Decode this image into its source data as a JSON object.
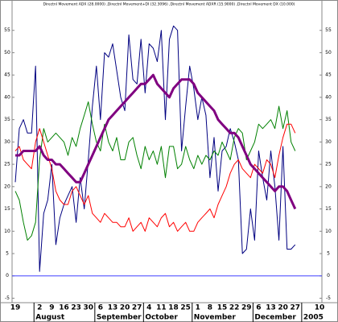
{
  "chart_data": {
    "type": "line",
    "title": "Directnl Movement ADX (28.0000) ,Directnl Movement+DI (32.3096) ,Directnl Movement ADXR (15.9000) ,Directnl Movement DX (10.000)",
    "categories": [
      "19",
      null,
      null,
      null,
      null,
      null,
      "2",
      null,
      null,
      "9",
      null,
      null,
      "16",
      null,
      null,
      "23",
      null,
      null,
      "30",
      null,
      null,
      "6",
      null,
      null,
      "13",
      null,
      null,
      "20",
      null,
      null,
      "27",
      null,
      null,
      "4",
      null,
      null,
      "11",
      null,
      null,
      "18",
      null,
      null,
      "25",
      null,
      null,
      "1",
      null,
      null,
      "8",
      null,
      null,
      "15",
      null,
      null,
      "22",
      null,
      null,
      "29",
      null,
      null,
      "6",
      null,
      null,
      "13",
      null,
      null,
      "20",
      null,
      null,
      "27",
      null,
      null,
      null,
      null,
      null,
      "10"
    ],
    "months": [
      null,
      null,
      null,
      null,
      null,
      null,
      "August",
      null,
      null,
      null,
      null,
      null,
      null,
      null,
      null,
      null,
      null,
      null,
      null,
      null,
      null,
      "September",
      null,
      null,
      null,
      null,
      null,
      null,
      null,
      null,
      null,
      null,
      null,
      "October",
      null,
      null,
      null,
      null,
      null,
      null,
      null,
      null,
      null,
      null,
      null,
      "November",
      null,
      null,
      null,
      null,
      null,
      null,
      null,
      null,
      null,
      null,
      null,
      null,
      null,
      null,
      "December",
      null,
      null,
      null,
      null,
      null,
      null,
      null,
      null,
      null,
      null,
      null,
      "2005",
      null,
      null,
      null
    ],
    "series": [
      {
        "color": "#000080",
        "width": 1,
        "values": [
          21,
          33,
          35,
          32,
          32,
          47,
          1,
          14,
          17,
          25,
          7,
          13,
          16,
          18,
          20,
          12,
          22,
          15,
          26,
          38,
          47,
          35,
          50,
          49,
          52,
          46,
          40,
          37,
          54,
          44,
          43,
          53,
          41,
          52,
          51,
          48,
          55,
          35,
          53,
          56,
          55,
          28,
          38,
          47,
          42,
          35,
          40,
          36,
          22,
          31,
          19,
          28,
          29,
          33,
          30,
          26,
          5,
          6,
          15,
          8,
          28,
          22,
          17,
          28,
          20,
          8,
          29,
          6,
          6,
          7,
          null,
          null,
          null,
          null,
          null,
          null
        ]
      },
      {
        "color": "#008000",
        "width": 1,
        "values": [
          19,
          17,
          12,
          8,
          9,
          12,
          26,
          33,
          30,
          31,
          32,
          31,
          30,
          27,
          31,
          29,
          33,
          36,
          39,
          34,
          30,
          28,
          34,
          30,
          28,
          31,
          26,
          26,
          30,
          31,
          27,
          24,
          29,
          26,
          28,
          25,
          29,
          22,
          29,
          29,
          24,
          25,
          29,
          26,
          24,
          27,
          25,
          27,
          26,
          28,
          27,
          30,
          28,
          26,
          31,
          33,
          32,
          26,
          28,
          30,
          34,
          33,
          34,
          35,
          33,
          38,
          33,
          37,
          30,
          28,
          null,
          null,
          null,
          null,
          null,
          null
        ]
      },
      {
        "color": "#ff0000",
        "width": 1,
        "values": [
          28,
          29,
          26,
          25,
          24,
          30,
          33,
          30,
          27,
          24,
          19,
          17,
          16,
          16,
          19,
          20,
          18,
          16,
          18,
          14,
          13,
          12,
          14,
          13,
          12,
          12,
          11,
          11,
          13,
          10,
          11,
          12,
          10,
          13,
          12,
          11,
          13,
          14,
          11,
          12,
          10,
          11,
          12,
          10,
          10,
          12,
          13,
          14,
          15,
          13,
          16,
          18,
          20,
          23,
          25,
          26,
          24,
          23,
          22,
          25,
          24,
          23,
          26,
          25,
          22,
          27,
          31,
          34,
          34,
          32,
          null,
          null,
          null,
          null,
          null,
          null
        ]
      },
      {
        "color": "#800080",
        "width": 3,
        "values": [
          27,
          27,
          28,
          28,
          28,
          28,
          29,
          27,
          26,
          26,
          25,
          25,
          24,
          23,
          22,
          21,
          21,
          23,
          25,
          27,
          29,
          31,
          33,
          35,
          36,
          37,
          38,
          39,
          40,
          41,
          42,
          43,
          43,
          44,
          45,
          43,
          42,
          41,
          40,
          42,
          43,
          44,
          44,
          44,
          43,
          41,
          40,
          39,
          38,
          37,
          35,
          34,
          33,
          32,
          32,
          31,
          29,
          27,
          25,
          24,
          23,
          22,
          21,
          20,
          19,
          20,
          20,
          19,
          17,
          15,
          null,
          null,
          null,
          null,
          null,
          null
        ]
      }
    ],
    "ylim": [
      -6,
      60
    ],
    "yticks": [
      -5,
      0,
      5,
      10,
      15,
      20,
      25,
      30,
      35,
      40,
      45,
      50,
      55
    ],
    "zero_line_color": "#4040ff"
  }
}
